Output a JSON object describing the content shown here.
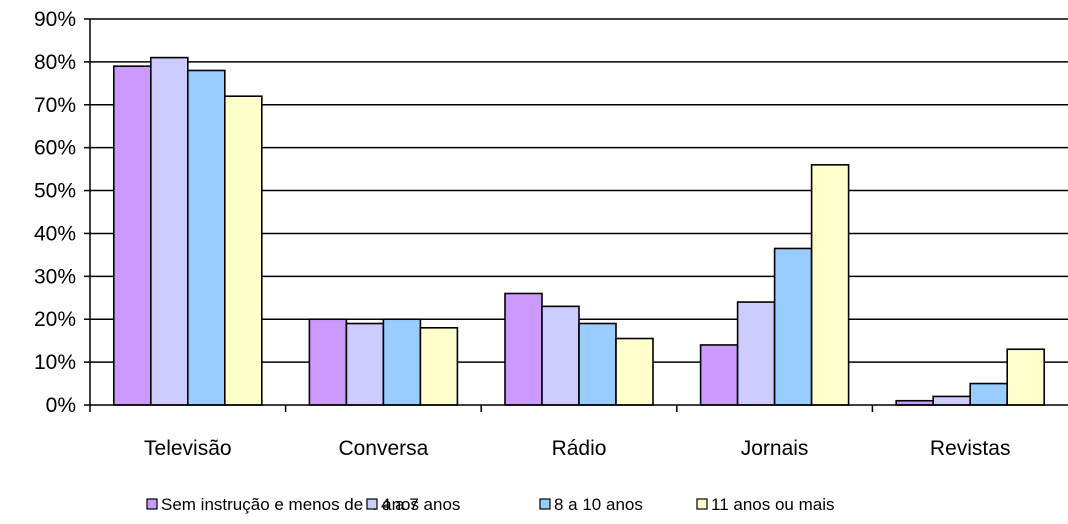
{
  "chart_data": {
    "type": "bar",
    "title": "",
    "xlabel": "",
    "ylabel": "",
    "ylim": [
      0,
      90
    ],
    "y_ticks": [
      "0%",
      "10%",
      "20%",
      "30%",
      "40%",
      "50%",
      "60%",
      "70%",
      "80%",
      "90%"
    ],
    "grid": true,
    "legend_position": "bottom",
    "categories": [
      "Televisão",
      "Conversa",
      "Rádio",
      "Jornais",
      "Revistas"
    ],
    "series": [
      {
        "name": "Sem instrução e menos de 4 anos",
        "color": "#cc99ff",
        "values": [
          79,
          20,
          26,
          14,
          1
        ]
      },
      {
        "name": "4 a 7 anos",
        "color": "#ccccff",
        "values": [
          81,
          19,
          23,
          24,
          2
        ]
      },
      {
        "name": "8 a 10 anos",
        "color": "#99ccff",
        "values": [
          78,
          20,
          19,
          36.5,
          5
        ]
      },
      {
        "name": "11 anos ou mais",
        "color": "#ffffcc",
        "values": [
          72,
          18,
          15.5,
          56,
          13
        ]
      }
    ]
  }
}
